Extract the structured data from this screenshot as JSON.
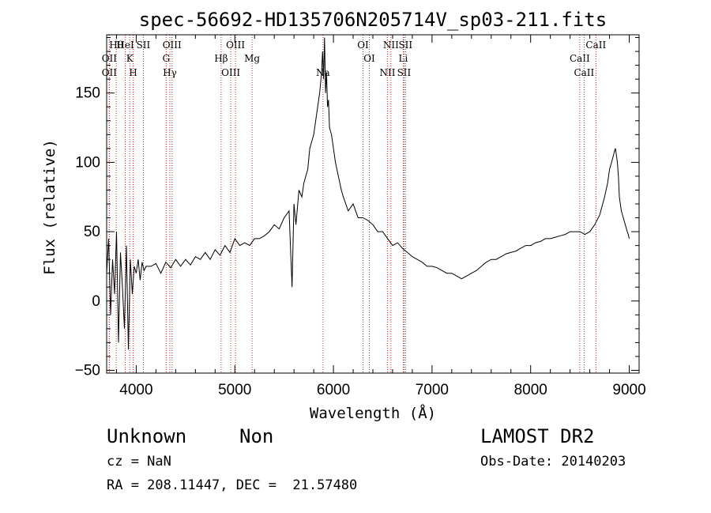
{
  "chart_data": {
    "type": "line",
    "title": "spec-56692-HD135706N205714V_sp03-211.fits",
    "xlabel": "Wavelength (Å)",
    "ylabel": "Flux (relative)",
    "xlim": [
      3700,
      9100
    ],
    "ylim": [
      -52,
      192
    ],
    "xticks": [
      4000,
      5000,
      6000,
      7000,
      8000,
      9000
    ],
    "yticks": [
      -50,
      0,
      50,
      100,
      150
    ],
    "grid": false,
    "line_color": "#000000",
    "marker_color": "#b03030",
    "series": [
      {
        "x": [
          3700,
          3720,
          3740,
          3760,
          3780,
          3800,
          3820,
          3840,
          3860,
          3880,
          3900,
          3920,
          3940,
          3960,
          3980,
          4000,
          4020,
          4040,
          4060,
          4080,
          4100,
          4150,
          4200,
          4250,
          4300,
          4350,
          4400,
          4450,
          4500,
          4550,
          4600,
          4650,
          4700,
          4750,
          4800,
          4850,
          4900,
          4950,
          5000,
          5050,
          5100,
          5150,
          5200,
          5250,
          5300,
          5350,
          5400,
          5450,
          5500,
          5550,
          5580,
          5600,
          5620,
          5650,
          5680,
          5700,
          5720,
          5740,
          5760,
          5780,
          5800,
          5820,
          5840,
          5860,
          5880,
          5890,
          5900,
          5910,
          5920,
          5930,
          5940,
          5950,
          5960,
          5980,
          6000,
          6020,
          6050,
          6080,
          6100,
          6150,
          6200,
          6250,
          6300,
          6350,
          6400,
          6450,
          6500,
          6550,
          6600,
          6650,
          6700,
          6750,
          6800,
          6850,
          6900,
          6950,
          7000,
          7050,
          7100,
          7150,
          7200,
          7250,
          7300,
          7350,
          7400,
          7450,
          7500,
          7550,
          7600,
          7650,
          7700,
          7750,
          7800,
          7850,
          7900,
          7950,
          8000,
          8050,
          8100,
          8150,
          8200,
          8250,
          8300,
          8350,
          8400,
          8450,
          8500,
          8550,
          8600,
          8650,
          8700,
          8750,
          8780,
          8800,
          8820,
          8840,
          8850,
          8860,
          8870,
          8880,
          8890,
          8900,
          8920,
          8940,
          8960,
          8980,
          8990,
          9000
        ],
        "y": [
          20,
          45,
          -10,
          30,
          5,
          50,
          -30,
          35,
          10,
          -20,
          40,
          -35,
          30,
          5,
          25,
          20,
          30,
          15,
          28,
          22,
          25,
          25,
          27,
          20,
          28,
          24,
          30,
          25,
          30,
          26,
          32,
          30,
          35,
          30,
          37,
          33,
          40,
          35,
          45,
          40,
          42,
          40,
          45,
          45,
          47,
          50,
          55,
          52,
          60,
          65,
          10,
          70,
          55,
          80,
          75,
          85,
          90,
          95,
          110,
          115,
          120,
          130,
          140,
          150,
          165,
          180,
          160,
          190,
          150,
          165,
          140,
          145,
          125,
          120,
          110,
          100,
          90,
          80,
          75,
          65,
          70,
          60,
          60,
          58,
          55,
          50,
          50,
          45,
          40,
          42,
          38,
          35,
          32,
          30,
          28,
          25,
          25,
          24,
          22,
          20,
          20,
          18,
          16,
          18,
          20,
          22,
          25,
          28,
          30,
          30,
          32,
          34,
          35,
          36,
          38,
          40,
          40,
          42,
          43,
          45,
          45,
          46,
          47,
          48,
          50,
          50,
          50,
          48,
          50,
          55,
          62,
          75,
          85,
          95,
          100,
          105,
          108,
          110,
          105,
          100,
          90,
          75,
          65,
          60,
          55,
          50,
          48,
          45
        ]
      }
    ],
    "lines": [
      {
        "x": 3797,
        "label": "Hθ"
      },
      {
        "x": 3727,
        "label": "OII"
      },
      {
        "x": 3727,
        "label": "OII"
      },
      {
        "x": 3889,
        "label": "HeI"
      },
      {
        "x": 3934,
        "label": "K"
      },
      {
        "x": 3969,
        "label": "H"
      },
      {
        "x": 4072,
        "label": "SII"
      },
      {
        "x": 4304,
        "label": "G"
      },
      {
        "x": 4341,
        "label": "Hγ"
      },
      {
        "x": 4363,
        "label": "OIII"
      },
      {
        "x": 4861,
        "label": "Hβ"
      },
      {
        "x": 4959,
        "label": "OIII"
      },
      {
        "x": 5007,
        "label": "OIII"
      },
      {
        "x": 5175,
        "label": "Mg"
      },
      {
        "x": 5894,
        "label": "Na"
      },
      {
        "x": 6300,
        "label": "OI"
      },
      {
        "x": 6364,
        "label": "OI"
      },
      {
        "x": 6548,
        "label": "NII"
      },
      {
        "x": 6583,
        "label": "NII"
      },
      {
        "x": 6708,
        "label": "Li"
      },
      {
        "x": 6716,
        "label": "SII"
      },
      {
        "x": 6731,
        "label": "SII"
      },
      {
        "x": 8498,
        "label": "CaII"
      },
      {
        "x": 8542,
        "label": "CaII"
      },
      {
        "x": 8662,
        "label": "CaII"
      }
    ]
  },
  "info": {
    "object_class": "Unknown",
    "subclass": "Non",
    "survey": "LAMOST DR2",
    "cz": "cz = NaN",
    "obs_date": "Obs-Date: 20140203",
    "coords": "RA = 208.11447, DEC =  21.57480"
  }
}
